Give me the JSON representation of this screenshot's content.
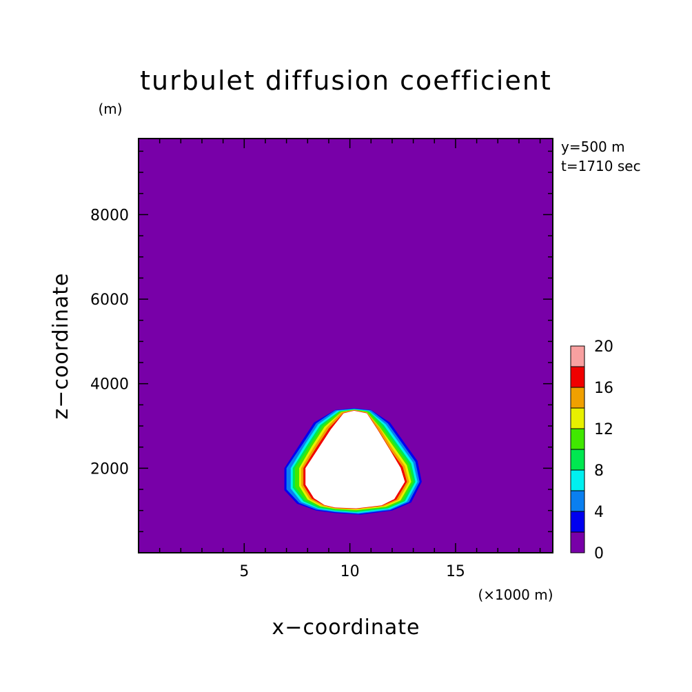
{
  "chart_data": {
    "type": "contour",
    "title": "turbulet diffusion coefficient",
    "xlabel": "x−coordinate",
    "ylabel": "z−coordinate",
    "x_unit": "(×1000 m)",
    "y_unit": "(m)",
    "info": [
      "y=500 m",
      "t=1710 sec"
    ],
    "xlim": [
      0,
      19.6
    ],
    "ylim": [
      0,
      9800
    ],
    "x_ticks": [
      5,
      10,
      15
    ],
    "x_tick_labels": [
      "5",
      "10",
      "15"
    ],
    "y_ticks": [
      2000,
      4000,
      6000,
      8000
    ],
    "y_tick_labels": [
      "2000",
      "4000",
      "6000",
      "8000"
    ],
    "background_color": "#7800a8",
    "blank_region_color": "#ffffff",
    "colorbar": {
      "levels": [
        0,
        2,
        4,
        6,
        8,
        10,
        12,
        14,
        16,
        18,
        20
      ],
      "labels": [
        "0",
        "4",
        "8",
        "12",
        "16",
        "20"
      ],
      "label_values": [
        0,
        4,
        8,
        12,
        16,
        20
      ],
      "colors": [
        "#7800a8",
        "#0000f0",
        "#0a7ff0",
        "#00f0f0",
        "#00e850",
        "#40e800",
        "#e8f000",
        "#f0a000",
        "#f00000",
        "#f8a0a0"
      ]
    },
    "contours": [
      {
        "level": 2,
        "color": "#0000f0",
        "points": [
          [
            10.2,
            3420
          ],
          [
            11.0,
            3380
          ],
          [
            11.9,
            3080
          ],
          [
            12.6,
            2590
          ],
          [
            13.2,
            2170
          ],
          [
            13.4,
            1680
          ],
          [
            12.9,
            1190
          ],
          [
            12.0,
            1000
          ],
          [
            10.5,
            900
          ],
          [
            9.3,
            940
          ],
          [
            8.4,
            1000
          ],
          [
            7.5,
            1160
          ],
          [
            6.9,
            1480
          ],
          [
            6.9,
            2000
          ],
          [
            7.7,
            2620
          ],
          [
            8.3,
            3080
          ],
          [
            9.3,
            3380
          ]
        ]
      },
      {
        "level": 4,
        "color": "#0a7ff0",
        "points": [
          [
            10.2,
            3410
          ],
          [
            11.0,
            3370
          ],
          [
            11.8,
            3060
          ],
          [
            12.5,
            2570
          ],
          [
            13.1,
            2150
          ],
          [
            13.3,
            1680
          ],
          [
            12.8,
            1200
          ],
          [
            11.9,
            1010
          ],
          [
            10.4,
            920
          ],
          [
            9.3,
            960
          ],
          [
            8.4,
            1020
          ],
          [
            7.6,
            1180
          ],
          [
            7.0,
            1500
          ],
          [
            7.0,
            2000
          ],
          [
            7.8,
            2600
          ],
          [
            8.4,
            3060
          ],
          [
            9.3,
            3370
          ]
        ]
      },
      {
        "level": 6,
        "color": "#00f0f0",
        "points": [
          [
            10.2,
            3400
          ],
          [
            10.9,
            3360
          ],
          [
            11.7,
            3040
          ],
          [
            12.4,
            2550
          ],
          [
            13.0,
            2130
          ],
          [
            13.2,
            1680
          ],
          [
            12.7,
            1210
          ],
          [
            11.9,
            1030
          ],
          [
            10.4,
            940
          ],
          [
            9.3,
            980
          ],
          [
            8.5,
            1040
          ],
          [
            7.7,
            1200
          ],
          [
            7.2,
            1520
          ],
          [
            7.2,
            2000
          ],
          [
            7.9,
            2580
          ],
          [
            8.5,
            3040
          ],
          [
            9.4,
            3360
          ]
        ]
      },
      {
        "level": 8,
        "color": "#00e850",
        "points": [
          [
            10.2,
            3390
          ],
          [
            10.9,
            3350
          ],
          [
            11.6,
            3020
          ],
          [
            12.3,
            2530
          ],
          [
            12.9,
            2110
          ],
          [
            13.1,
            1680
          ],
          [
            12.6,
            1220
          ],
          [
            11.8,
            1050
          ],
          [
            10.3,
            960
          ],
          [
            9.3,
            1000
          ],
          [
            8.5,
            1060
          ],
          [
            7.8,
            1220
          ],
          [
            7.3,
            1540
          ],
          [
            7.3,
            2000
          ],
          [
            8.0,
            2560
          ],
          [
            8.6,
            3020
          ],
          [
            9.5,
            3350
          ]
        ]
      },
      {
        "level": 10,
        "color": "#40e800",
        "points": [
          [
            10.2,
            3385
          ],
          [
            10.9,
            3340
          ],
          [
            11.5,
            3000
          ],
          [
            12.2,
            2510
          ],
          [
            12.8,
            2090
          ],
          [
            13.0,
            1680
          ],
          [
            12.5,
            1230
          ],
          [
            11.8,
            1070
          ],
          [
            10.3,
            990
          ],
          [
            9.3,
            1020
          ],
          [
            8.6,
            1080
          ],
          [
            7.9,
            1240
          ],
          [
            7.4,
            1560
          ],
          [
            7.4,
            2000
          ],
          [
            8.1,
            2540
          ],
          [
            8.7,
            3000
          ],
          [
            9.5,
            3340
          ]
        ]
      },
      {
        "level": 12,
        "color": "#e8f000",
        "points": [
          [
            10.2,
            3380
          ],
          [
            10.8,
            3330
          ],
          [
            11.4,
            2980
          ],
          [
            12.1,
            2490
          ],
          [
            12.7,
            2070
          ],
          [
            12.9,
            1680
          ],
          [
            12.4,
            1240
          ],
          [
            11.7,
            1090
          ],
          [
            10.3,
            1010
          ],
          [
            9.3,
            1040
          ],
          [
            8.6,
            1100
          ],
          [
            8.0,
            1260
          ],
          [
            7.6,
            1580
          ],
          [
            7.6,
            2000
          ],
          [
            8.2,
            2520
          ],
          [
            8.8,
            2980
          ],
          [
            9.6,
            3330
          ]
        ]
      },
      {
        "level": 14,
        "color": "#f0a000",
        "points": [
          [
            10.2,
            3375
          ],
          [
            10.8,
            3320
          ],
          [
            11.4,
            2960
          ],
          [
            12.0,
            2470
          ],
          [
            12.6,
            2050
          ],
          [
            12.8,
            1680
          ],
          [
            12.3,
            1250
          ],
          [
            11.6,
            1100
          ],
          [
            10.3,
            1030
          ],
          [
            9.3,
            1050
          ],
          [
            8.7,
            1110
          ],
          [
            8.1,
            1270
          ],
          [
            7.7,
            1590
          ],
          [
            7.7,
            2000
          ],
          [
            8.3,
            2500
          ],
          [
            8.9,
            2960
          ],
          [
            9.6,
            3320
          ]
        ]
      },
      {
        "level": 16,
        "color": "#f00000",
        "points": [
          [
            10.2,
            3370
          ],
          [
            10.8,
            3310
          ],
          [
            11.3,
            2940
          ],
          [
            11.9,
            2450
          ],
          [
            12.5,
            2030
          ],
          [
            12.7,
            1680
          ],
          [
            12.2,
            1260
          ],
          [
            11.5,
            1110
          ],
          [
            10.3,
            1040
          ],
          [
            9.3,
            1060
          ],
          [
            8.8,
            1120
          ],
          [
            8.2,
            1280
          ],
          [
            7.8,
            1600
          ],
          [
            7.8,
            2000
          ],
          [
            8.4,
            2480
          ],
          [
            9.0,
            2940
          ],
          [
            9.7,
            3310
          ]
        ]
      },
      {
        "level": 17,
        "color": "#ffffff",
        "points": [
          [
            10.2,
            3360
          ],
          [
            10.8,
            3300
          ],
          [
            11.3,
            2920
          ],
          [
            11.9,
            2430
          ],
          [
            12.4,
            2010
          ],
          [
            12.6,
            1680
          ],
          [
            12.1,
            1270
          ],
          [
            11.5,
            1120
          ],
          [
            10.3,
            1050
          ],
          [
            9.3,
            1070
          ],
          [
            8.8,
            1130
          ],
          [
            8.3,
            1290
          ],
          [
            7.9,
            1610
          ],
          [
            7.9,
            2000
          ],
          [
            8.5,
            2460
          ],
          [
            9.1,
            2920
          ],
          [
            9.7,
            3300
          ]
        ]
      }
    ]
  }
}
